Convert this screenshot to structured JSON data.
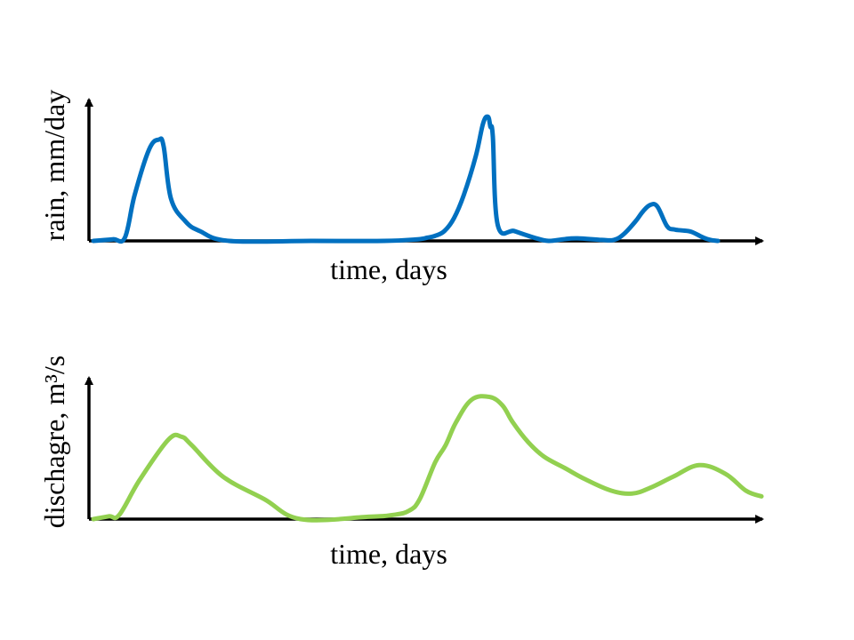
{
  "chart_data": [
    {
      "type": "line",
      "xlabel": "time, days",
      "ylabel": "rain, mm/day",
      "grid": false,
      "ticks": false,
      "series": [
        {
          "color": "#0070c0",
          "x": [
            0,
            4,
            6.5,
            8.5,
            11.5,
            13.5,
            14.5,
            16,
            19,
            22,
            28,
            45,
            60,
            67,
            69,
            70.5,
            72.5,
            74.5,
            76.5,
            79,
            80.5,
            81.5,
            82,
            82.5,
            83.5,
            87,
            91,
            94,
            97,
            100,
            105,
            107.5,
            109.5,
            112,
            113.5,
            115,
            116.5,
            118.5,
            120,
            121.5,
            123.5,
            126,
            127.5,
            129
          ],
          "y": [
            0,
            0.5,
            1,
            14,
            28,
            31,
            29,
            13,
            6,
            3,
            0,
            0,
            0,
            0.5,
            1,
            1.5,
            3,
            7,
            14,
            26,
            36,
            38,
            35,
            32,
            5,
            3,
            1,
            0,
            0.5,
            0.8,
            0.3,
            0.3,
            2,
            6,
            9,
            11,
            10.5,
            4.5,
            3.5,
            3.2,
            2.8,
            1,
            0.3,
            0
          ]
        }
      ]
    },
    {
      "type": "line",
      "xlabel": "time, days",
      "ylabel": "dischagre, m³/s",
      "grid": false,
      "ticks": false,
      "series": [
        {
          "color": "#92d050",
          "x": [
            0,
            3,
            5,
            9,
            14.5,
            17,
            19,
            25,
            33,
            40,
            53,
            58,
            61,
            63,
            66,
            68,
            70,
            73,
            76.5,
            79,
            81,
            84,
            87,
            91,
            95,
            100,
            104,
            107.5,
            112,
            117,
            122,
            126,
            129
          ],
          "y": [
            0,
            1,
            1.5,
            14,
            28,
            29,
            26,
            15,
            7,
            0,
            0.8,
            1.5,
            3,
            7,
            20,
            26,
            34,
            42,
            43,
            40,
            34,
            27,
            22,
            18,
            14,
            10,
            9,
            11,
            15,
            19,
            16,
            10,
            8
          ]
        }
      ]
    }
  ]
}
